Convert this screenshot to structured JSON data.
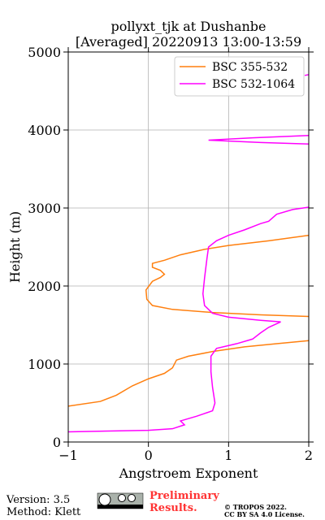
{
  "chart_data": {
    "type": "line",
    "title": "pollyxt_tjk at Dushanbe",
    "subtitle": "[Averaged] 20220913 13:00-13:59",
    "x_label": "Angstroem Exponent",
    "y_label": "Height (m)",
    "xlim": [
      -1,
      2
    ],
    "ylim": [
      0,
      5000
    ],
    "xticks": [
      {
        "value": -1,
        "label": "−1"
      },
      0,
      1,
      2
    ],
    "yticks": [
      0,
      1000,
      2000,
      3000,
      4000,
      5000
    ],
    "grid": true,
    "legend": "upper right",
    "series": [
      {
        "name": "BSC 355-532",
        "color": "#ff7f0e",
        "x": [
          -1,
          -0.6,
          -0.4,
          -0.2,
          0,
          0.2,
          0.3,
          0.35,
          0.5,
          0.8,
          1.2,
          1.6,
          2.0,
          null,
          2.0,
          1.4,
          0.8,
          0.3,
          0.05,
          -0.02,
          -0.03,
          0.05,
          0.15,
          0.2,
          0.15,
          0.05,
          0.05,
          0.2,
          0.4,
          0.7,
          1.0,
          1.5,
          2.0
        ],
        "y": [
          460,
          520,
          600,
          720,
          810,
          880,
          950,
          1050,
          1100,
          1160,
          1220,
          1260,
          1300,
          null,
          1610,
          1630,
          1660,
          1700,
          1750,
          1830,
          1950,
          2060,
          2110,
          2150,
          2200,
          2240,
          2290,
          2330,
          2400,
          2470,
          2520,
          2580,
          2650
        ]
      },
      {
        "name": "BSC 532-1064",
        "color": "#ff00ff",
        "x": [
          -1,
          0,
          0.3,
          0.45,
          0.4,
          0.6,
          0.8,
          0.83,
          0.8,
          0.78,
          0.78,
          0.85,
          1.1,
          1.3,
          1.4,
          1.5,
          1.65,
          1.4,
          1.0,
          0.8,
          0.7,
          0.68,
          0.7,
          0.73,
          0.75,
          0.85,
          1.0,
          1.2,
          1.4,
          1.5,
          1.6,
          1.8,
          2.0,
          null,
          2.0,
          1.4,
          0.75,
          1.3,
          2.0,
          null,
          1.95,
          2.0
        ],
        "y": [
          130,
          150,
          170,
          220,
          270,
          330,
          400,
          500,
          700,
          900,
          1100,
          1200,
          1260,
          1320,
          1400,
          1470,
          1540,
          1560,
          1600,
          1650,
          1750,
          1900,
          2100,
          2350,
          2500,
          2580,
          2650,
          2720,
          2800,
          2830,
          2920,
          2980,
          3010,
          null,
          3820,
          3840,
          3870,
          3900,
          3930,
          null,
          4700,
          4710
        ]
      }
    ]
  },
  "footer": {
    "version": "Version: 3.5",
    "method": "Method: Klett",
    "preliminary": [
      "Preliminary",
      "Results."
    ],
    "copyright": [
      "© TROPOS 2022.",
      "CC BY SA 4.0 License."
    ]
  }
}
